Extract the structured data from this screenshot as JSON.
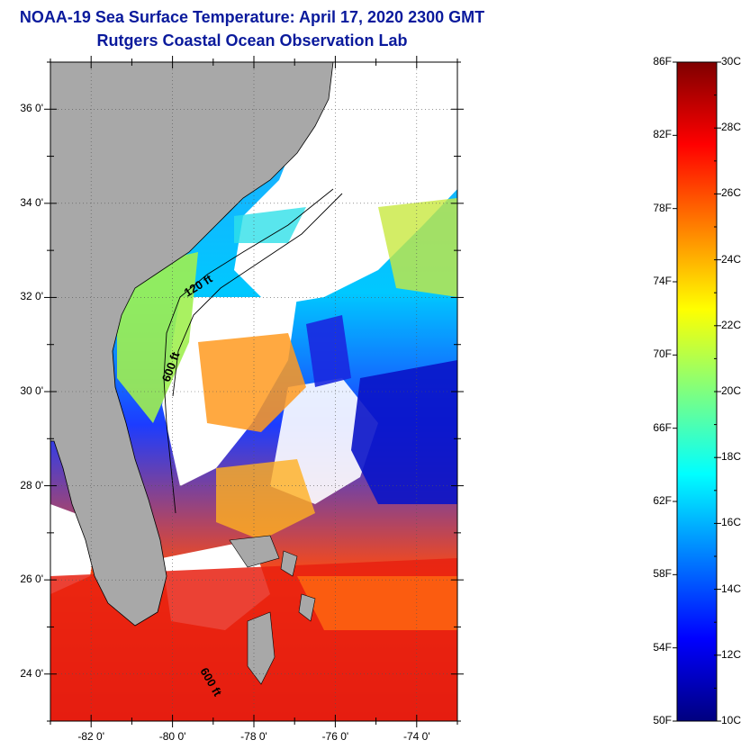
{
  "header": {
    "title": "NOAA-19 Sea Surface Temperature:  April 17, 2020 2300 GMT",
    "subtitle": "Rutgers Coastal Ocean Observation Lab"
  },
  "map": {
    "latitude_labels": [
      "36 0'",
      "34 0'",
      "32 0'",
      "30 0'",
      "28 0'",
      "26 0'",
      "24 0'"
    ],
    "longitude_labels": [
      "-82 0'",
      "-80 0'",
      "-78 0'",
      "-76 0'",
      "-74 0'"
    ],
    "latitude_values": [
      36,
      34,
      32,
      30,
      28,
      26,
      24
    ],
    "longitude_values": [
      -82,
      -80,
      -78,
      -76,
      -74
    ],
    "lat_range": [
      23.0,
      37.0
    ],
    "lon_range": [
      -83.0,
      -73.0
    ],
    "contour_labels": [
      "120 ft",
      "600 ft",
      "600 ft"
    ],
    "land_color": "#a8a8a8",
    "cloud_color": "#ffffff"
  },
  "colorbar": {
    "fahrenheit_labels": [
      "86F",
      "82F",
      "78F",
      "74F",
      "70F",
      "66F",
      "62F",
      "58F",
      "54F",
      "50F"
    ],
    "celsius_labels": [
      "30C",
      "28C",
      "26C",
      "24C",
      "22C",
      "20C",
      "18C",
      "16C",
      "14C",
      "12C",
      "10C"
    ],
    "celsius_range": [
      10,
      30
    ],
    "fahrenheit_range": [
      50,
      86
    ],
    "colormap": [
      "#00007f",
      "#0000ff",
      "#007fff",
      "#00ffff",
      "#7fff7f",
      "#ffff00",
      "#ff7f00",
      "#ff0000",
      "#7f0000"
    ]
  }
}
